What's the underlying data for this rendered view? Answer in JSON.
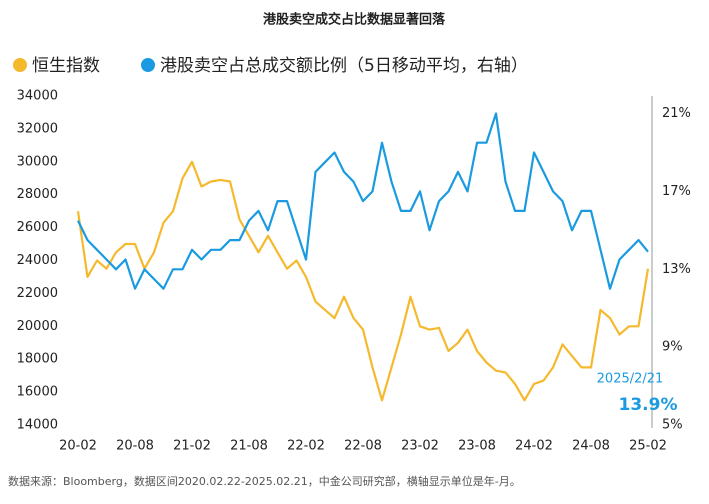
{
  "chart_data": {
    "type": "line",
    "title": "港股卖空成交占比数据显著回落",
    "categories": [
      "20-02",
      null,
      null,
      null,
      null,
      null,
      "20-08",
      null,
      null,
      null,
      null,
      null,
      "21-02",
      null,
      null,
      null,
      null,
      null,
      "21-08",
      null,
      null,
      null,
      null,
      null,
      "22-02",
      null,
      null,
      null,
      null,
      null,
      "22-08",
      null,
      null,
      null,
      null,
      null,
      "23-02",
      null,
      null,
      null,
      null,
      null,
      "23-08",
      null,
      null,
      null,
      null,
      null,
      "24-02",
      null,
      null,
      null,
      null,
      null,
      "24-08",
      null,
      null,
      null,
      null,
      null,
      "25-02"
    ],
    "series": [
      {
        "name": "恒生指数",
        "color": "#f5b92e",
        "values": [
          27000,
          23000,
          24000,
          23500,
          24500,
          25000,
          25000,
          23500,
          24500,
          26300,
          27000,
          29000,
          30000,
          28500,
          28800,
          28900,
          28800,
          26500,
          25500,
          24500,
          25500,
          24500,
          23500,
          24000,
          23000,
          21500,
          21000,
          20500,
          21800,
          20500,
          19800,
          17500,
          15500,
          17500,
          19500,
          21800,
          20000,
          19800,
          19900,
          18500,
          19000,
          19800,
          18500,
          17800,
          17300,
          17200,
          16500,
          15500,
          16500,
          16700,
          17500,
          18900,
          18200,
          17500,
          17500,
          21000,
          20500,
          19500,
          20000,
          20000,
          23500
        ]
      },
      {
        "name": "港股卖空占总成交额比例（5日移动平均，右轴）",
        "color": "#1a9ae0",
        "axis": "y2",
        "values": [
          15.5,
          14.5,
          14,
          13.5,
          13,
          13.5,
          12,
          13,
          12.5,
          12,
          13,
          13,
          14,
          13.5,
          14,
          14,
          14.5,
          14.5,
          15.5,
          16,
          15,
          16.5,
          16.5,
          15,
          13.5,
          18,
          18.5,
          19,
          18,
          17.5,
          16.5,
          17,
          19.5,
          17.5,
          16,
          16,
          17,
          15,
          16.5,
          17,
          18,
          17,
          19.5,
          19.5,
          21,
          17.5,
          16,
          16,
          19,
          18,
          17,
          16.5,
          15,
          16,
          16,
          14,
          12,
          13.5,
          14,
          14.5,
          13.9
        ]
      }
    ],
    "ylim": [
      14000,
      34000
    ],
    "yticks": [
      14000,
      16000,
      18000,
      20000,
      22000,
      24000,
      26000,
      28000,
      30000,
      32000,
      34000
    ],
    "y2lim": [
      5,
      21.9
    ],
    "y2ticks": [
      {
        "value": 5,
        "label": "5%"
      },
      {
        "value": 9,
        "label": "9%"
      },
      {
        "value": 13,
        "label": "13%"
      },
      {
        "value": 17,
        "label": "17%"
      },
      {
        "value": 21,
        "label": "21%"
      }
    ],
    "annotations": [
      "2025/2/21",
      "13.9%"
    ],
    "source": "数据来源：Bloomberg，数据区间2020.02.22-2025.02.21，中金公司研究部，横轴显示单位是年-月。"
  }
}
